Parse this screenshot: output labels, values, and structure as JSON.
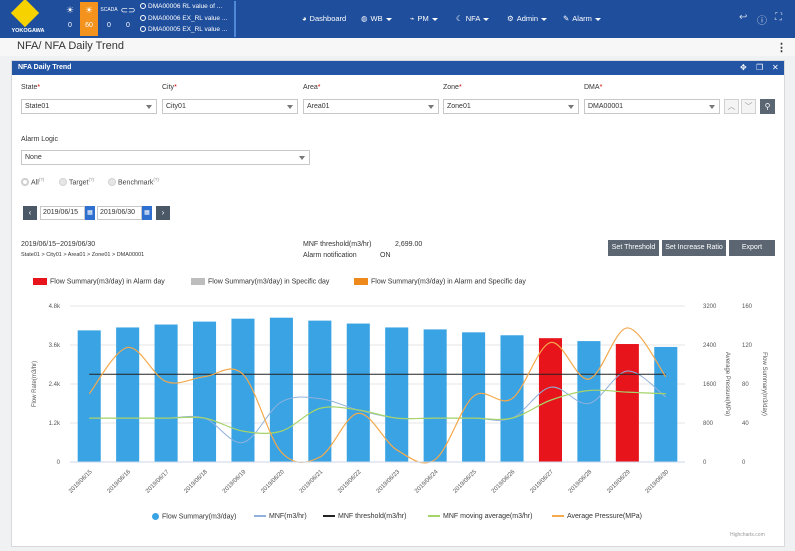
{
  "header": {
    "logo_text": "YOKOGAWA",
    "stats": [
      {
        "icon": "sun-icon",
        "value": "0"
      },
      {
        "icon": "sun-alert-icon",
        "value": "60"
      },
      {
        "icon": "scada-icon",
        "icon_text": "SCADA",
        "value": "0"
      },
      {
        "icon": "toggle-icon",
        "value": "0"
      }
    ],
    "alarms": [
      "DMA00006 RL value of ...",
      "DMA00006 EX_RL value ...",
      "DMA00005 EX_RL value ..."
    ],
    "nav": [
      {
        "label": "Dashboard",
        "icon": "palette-icon",
        "caret": false
      },
      {
        "label": "WB",
        "icon": "globe-icon",
        "caret": true
      },
      {
        "label": "PM",
        "icon": "line-chart-icon",
        "caret": true
      },
      {
        "label": "NFA",
        "icon": "moon-icon",
        "caret": true
      },
      {
        "label": "Admin",
        "icon": "gear-icon",
        "caret": true
      },
      {
        "label": "Alarm",
        "icon": "wrench-icon",
        "caret": true
      }
    ]
  },
  "breadcrumb": "NFA/  NFA Daily Trend",
  "panel": {
    "title": "NFA Daily Trend"
  },
  "filters": {
    "state": {
      "label": "State",
      "value": "State01"
    },
    "city": {
      "label": "City",
      "value": "City01"
    },
    "area": {
      "label": "Area",
      "value": "Area01"
    },
    "zone": {
      "label": "Zone",
      "value": "Zone01"
    },
    "dma": {
      "label": "DMA",
      "value": "DMA00001"
    },
    "alarm_logic": {
      "label": "Alarm Logic",
      "value": "None"
    }
  },
  "radio": {
    "all": "All",
    "target": "Target",
    "benchmark": "Benchmark",
    "note": "(?)"
  },
  "dates": {
    "from": "2019/06/15",
    "to": "2019/06/30"
  },
  "info": {
    "range": "2019/06/15~2019/06/30",
    "path": "State01 > City01 > Area01 > Zone01 > DMA00001",
    "mnf_threshold_label": "MNF threshold(m3/hr)",
    "mnf_threshold_value": "2,699.00",
    "alarm_notification_label": "Alarm notification",
    "alarm_notification_value": "ON"
  },
  "buttons": {
    "set_threshold": "Set Threshold",
    "set_increase_ratio": "Set Increase Ratio",
    "export": "Export"
  },
  "legend_top": [
    {
      "label": "Flow Summary(m3/day) in Alarm day",
      "color": "#e8141b"
    },
    {
      "label": "Flow Summary(m3/day) in Specific day",
      "color": "#bdbdbd"
    },
    {
      "label": "Flow Summary(m3/day) in Alarm and Specific day",
      "color": "#ee8a1c"
    }
  ],
  "legend_bottom": [
    {
      "label": "Flow Summary(m3/day)",
      "color": "#3aa3e3",
      "kind": "dot"
    },
    {
      "label": "MNF(m3/hr)",
      "color": "#8fb1db",
      "kind": "line"
    },
    {
      "label": "MNF threshold(m3/hr)",
      "color": "#222222",
      "kind": "line"
    },
    {
      "label": "MNF moving average(m3/hr)",
      "color": "#a6d36a",
      "kind": "line"
    },
    {
      "label": "Average Pressure(MPa)",
      "color": "#f4a94b",
      "kind": "line"
    }
  ],
  "credit": "Highcharts.com",
  "chart_data": {
    "type": "bar",
    "categories": [
      "2019/06/15",
      "2019/06/16",
      "2019/06/17",
      "2019/06/18",
      "2019/06/19",
      "2019/06/20",
      "2019/06/21",
      "2019/06/22",
      "2019/06/23",
      "2019/06/24",
      "2019/06/25",
      "2019/06/26",
      "2019/06/27",
      "2019/06/28",
      "2019/06/29",
      "2019/06/30"
    ],
    "ylabel": "Flow Rate(m3/hr)",
    "y2label": "Average Pressure(MPa)",
    "y3label": "Flow Summary(m3/day)",
    "y_ticks": [
      "0",
      "1.2k",
      "2.4k",
      "3.6k",
      "4.8k"
    ],
    "y2_ticks": [
      "0",
      "800",
      "1600",
      "2400",
      "3200"
    ],
    "y3_ticks": [
      "0",
      "40",
      "80",
      "120",
      "160"
    ],
    "ylim": [
      0,
      4800
    ],
    "y2lim": [
      0,
      3200
    ],
    "y3lim": [
      0,
      160
    ],
    "bar_colors": [
      "#3aa3e3",
      "#3aa3e3",
      "#3aa3e3",
      "#3aa3e3",
      "#3aa3e3",
      "#3aa3e3",
      "#3aa3e3",
      "#3aa3e3",
      "#3aa3e3",
      "#3aa3e3",
      "#3aa3e3",
      "#3aa3e3",
      "#e8141b",
      "#3aa3e3",
      "#e8141b",
      "#3aa3e3"
    ],
    "series": [
      {
        "name": "Flow Summary(m3/day)",
        "type": "bar",
        "axis": "y3",
        "values": [
          135,
          138,
          141,
          144,
          147,
          148,
          145,
          142,
          138,
          136,
          133,
          130,
          127,
          124,
          121,
          118
        ]
      },
      {
        "name": "MNF(m3/hr)",
        "type": "line",
        "axis": "y",
        "values": [
          1350,
          1350,
          1350,
          1350,
          600,
          1850,
          1950,
          1600,
          1350,
          1350,
          1350,
          1350,
          2300,
          1800,
          2800,
          2000
        ]
      },
      {
        "name": "MNF threshold(m3/hr)",
        "type": "line",
        "axis": "y",
        "values": [
          2699,
          2699,
          2699,
          2699,
          2699,
          2699,
          2699,
          2699,
          2699,
          2699,
          2699,
          2699,
          2699,
          2699,
          2699,
          2699
        ]
      },
      {
        "name": "MNF moving average(m3/hr)",
        "type": "line",
        "axis": "y",
        "values": [
          1350,
          1350,
          1350,
          1350,
          950,
          950,
          1650,
          1600,
          1350,
          1350,
          1350,
          1350,
          1900,
          2200,
          2150,
          2100
        ]
      },
      {
        "name": "Average Pressure(MPa)",
        "type": "line",
        "axis": "y2",
        "values": [
          1400,
          2350,
          1650,
          1750,
          1800,
          200,
          100,
          1000,
          250,
          50,
          1350,
          1300,
          2450,
          1700,
          2750,
          1750
        ]
      }
    ]
  }
}
